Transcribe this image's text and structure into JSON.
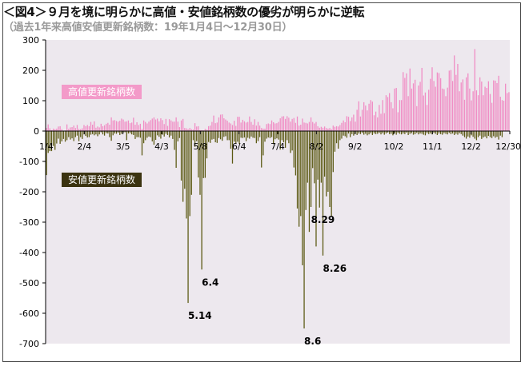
{
  "title": "＜図4＞９月を境に明らかに高値・安値銘柄数の優劣が明らかに逆転",
  "subtitle": "（過去1年来高値安値更新銘柄数：19年1月4日～12月30日）",
  "legend": {
    "high": "高値更新銘柄数",
    "low": "安値更新銘柄数"
  },
  "colors": {
    "high": "#f08cc4",
    "low": "#5c5a14",
    "plot_bg": "#ede8ee",
    "zero_line": "#000000"
  },
  "chart_data": {
    "type": "bar",
    "title": "＜図4＞９月を境に明らかに高値・安値銘柄数の優劣が明らかに逆転",
    "subtitle": "（過去1年来高値安値更新銘柄数：19年1月4日～12月30日）",
    "x_tick_labels": [
      "1/4",
      "2/4",
      "3/5",
      "4/3",
      "5/8",
      "6/4",
      "7/4",
      "8/2",
      "9/2",
      "10/2",
      "11/1",
      "12/2",
      "12/30"
    ],
    "y_tick_labels": [
      "300",
      "200",
      "100",
      "0",
      "-100",
      "-200",
      "-300",
      "-400",
      "-500",
      "-600",
      "-700"
    ],
    "ylim": [
      -700,
      300
    ],
    "grid": false,
    "legend_placement": "inside-left",
    "series": [
      {
        "name": "高値更新銘柄数",
        "values": [
          10,
          22,
          9,
          3,
          8,
          6,
          8,
          15,
          16,
          6,
          0,
          2,
          22,
          7,
          12,
          13,
          18,
          10,
          20,
          7,
          6,
          9,
          20,
          16,
          20,
          16,
          30,
          21,
          32,
          11,
          15,
          12,
          24,
          16,
          19,
          24,
          27,
          21,
          45,
          35,
          36,
          33,
          31,
          34,
          41,
          38,
          31,
          32,
          35,
          26,
          28,
          44,
          21,
          29,
          20,
          24,
          7,
          35,
          30,
          25,
          31,
          36,
          41,
          45,
          38,
          41,
          32,
          42,
          36,
          23,
          40,
          17,
          39,
          35,
          31,
          31,
          45,
          31,
          13,
          35,
          40,
          10,
          9,
          6,
          10,
          6,
          5,
          26,
          15,
          16,
          3,
          3,
          2,
          7,
          5,
          16,
          18,
          30,
          51,
          26,
          28,
          45,
          54,
          55,
          42,
          38,
          34,
          28,
          25,
          20,
          34,
          17,
          47,
          47,
          28,
          37,
          32,
          28,
          30,
          48,
          30,
          21,
          39,
          18,
          30,
          18,
          10,
          8,
          8,
          23,
          25,
          23,
          35,
          29,
          25,
          26,
          30,
          42,
          48,
          49,
          40,
          49,
          44,
          31,
          40,
          43,
          27,
          48,
          18,
          21,
          41,
          28,
          27,
          25,
          30,
          45,
          30,
          25,
          30,
          16,
          11,
          14,
          11,
          15,
          10,
          8,
          10,
          6,
          18,
          14,
          16,
          15,
          20,
          27,
          35,
          29,
          49,
          47,
          33,
          45,
          54,
          31,
          70,
          98,
          48,
          70,
          95,
          84,
          68,
          90,
          102,
          97,
          52,
          64,
          45,
          86,
          57,
          102,
          59,
          118,
          112,
          125,
          95,
          75,
          140,
          142,
          62,
          102,
          102,
          194,
          175,
          190,
          115,
          206,
          140,
          157,
          169,
          82,
          150,
          162,
          208,
          117,
          127,
          86,
          136,
          172,
          210,
          165,
          146,
          193,
          191,
          174,
          140,
          138,
          115,
          143,
          199,
          201,
          165,
          249,
          185,
          221,
          131,
          160,
          170,
          103,
          177,
          190,
          140,
          101,
          131,
          270,
          134,
          118,
          177,
          163,
          118,
          146,
          142,
          164,
          122,
          93,
          167,
          166,
          158,
          182,
          113,
          102,
          100,
          156,
          125,
          128
        ]
      },
      {
        "name": "安値更新銘柄数",
        "values": [
          -145,
          -72,
          -66,
          -66,
          -49,
          -62,
          -41,
          -25,
          -42,
          -34,
          -26,
          -35,
          -30,
          -20,
          -28,
          -24,
          -33,
          -20,
          -15,
          -33,
          -20,
          -26,
          -11,
          -16,
          -21,
          -20,
          -12,
          -10,
          -14,
          -11,
          -17,
          -11,
          -4,
          -11,
          -15,
          -7,
          -8,
          -20,
          -32,
          -14,
          -8,
          -9,
          -5,
          -13,
          -9,
          -5,
          -4,
          -30,
          -8,
          -7,
          -11,
          -13,
          -26,
          -20,
          -20,
          -22,
          -80,
          -40,
          -30,
          -22,
          -18,
          -20,
          -34,
          -45,
          -29,
          -14,
          -19,
          -25,
          -12,
          -18,
          -9,
          -13,
          -21,
          -15,
          -26,
          -62,
          -121,
          -34,
          -23,
          -163,
          -233,
          -190,
          -288,
          -566,
          -280,
          -210,
          -30,
          -52,
          -33,
          -153,
          -210,
          -456,
          -155,
          -154,
          -90,
          -36,
          -39,
          -28,
          -26,
          -37,
          -39,
          -23,
          -27,
          -32,
          -19,
          -17,
          -30,
          -30,
          -58,
          -107,
          -35,
          -40,
          -35,
          -42,
          -22,
          -23,
          -21,
          -33,
          -22,
          -25,
          -18,
          -22,
          -23,
          -40,
          -33,
          -20,
          -120,
          -80,
          -35,
          -25,
          -21,
          -23,
          -20,
          -43,
          -27,
          -24,
          -28,
          -61,
          -30,
          -37,
          -55,
          -30,
          -40,
          -72,
          -64,
          -120,
          -146,
          -255,
          -315,
          -280,
          -442,
          -650,
          -260,
          -170,
          -332,
          -250,
          -122,
          -172,
          -380,
          -160,
          -252,
          -170,
          -410,
          -150,
          -215,
          -200,
          -250,
          -280,
          -135,
          -68,
          -40,
          -58,
          -30,
          -25,
          -15,
          -17,
          -22,
          -8,
          -20,
          -10,
          -15,
          -9,
          -13,
          -8,
          -10,
          -6,
          -12,
          -9,
          -14,
          -11,
          -7,
          -13,
          -8,
          -10,
          -9,
          -6,
          -11,
          -7,
          -12,
          -8,
          -5,
          -10,
          -9,
          -14,
          -7,
          -12,
          -6,
          -9,
          -11,
          -8,
          -10,
          -5,
          -13,
          -9,
          -7,
          -12,
          -10,
          -6,
          -11,
          -8,
          -9,
          -12,
          -14,
          -7,
          -10,
          -8,
          -11,
          -6,
          -9,
          -13,
          -8,
          -10,
          -12,
          -7,
          -9,
          -11,
          -6,
          -10,
          -8,
          -13,
          -9,
          -12,
          -7,
          -10,
          -15,
          -20,
          -25,
          -18,
          -22,
          -14,
          -19,
          -25,
          -30,
          -20,
          -15,
          -26,
          -21,
          -18,
          -24,
          -16,
          -20,
          -23,
          -17,
          -22,
          -19,
          -28,
          -15,
          -20
        ]
      }
    ],
    "annotations": [
      {
        "label": "5.14",
        "value": -566
      },
      {
        "label": "6.4",
        "value": -456
      },
      {
        "label": "8.6",
        "value": -650
      },
      {
        "label": "8.26",
        "value": -410
      },
      {
        "label": "8.29",
        "value": -250
      }
    ]
  }
}
